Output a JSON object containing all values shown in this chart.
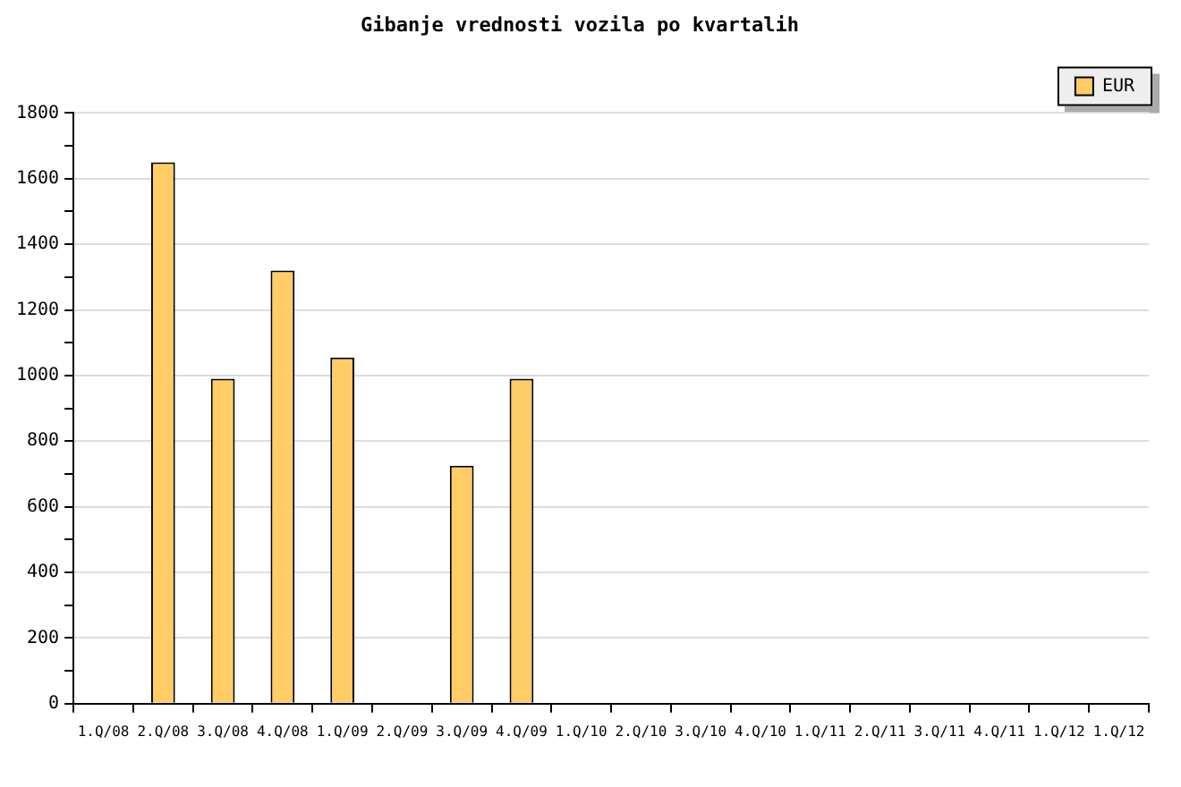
{
  "chart_data": {
    "type": "bar",
    "title": "Gibanje vrednosti vozila po kvartalih",
    "categories": [
      "1.Q/08",
      "2.Q/08",
      "3.Q/08",
      "4.Q/08",
      "1.Q/09",
      "2.Q/09",
      "3.Q/09",
      "4.Q/09",
      "1.Q/10",
      "2.Q/10",
      "3.Q/10",
      "4.Q/10",
      "1.Q/11",
      "2.Q/11",
      "3.Q/11",
      "4.Q/11",
      "1.Q/12",
      "1.Q/12"
    ],
    "series": [
      {
        "name": "EUR",
        "color": "#ffcc66",
        "values": [
          null,
          1650,
          990,
          1320,
          1055,
          null,
          725,
          990,
          null,
          null,
          null,
          null,
          null,
          null,
          null,
          null,
          null,
          null
        ]
      }
    ],
    "ylim": [
      0,
      1800
    ],
    "yticks": [
      0,
      {
        "value": 100,
        "label": null
      },
      200,
      {
        "value": 300,
        "label": null
      },
      400,
      {
        "value": 500,
        "label": null
      },
      600,
      {
        "value": 700,
        "label": null
      },
      800,
      {
        "value": 900,
        "label": null
      },
      1000,
      {
        "value": 1100,
        "label": null
      },
      1200,
      {
        "value": 1300,
        "label": null
      },
      1400,
      {
        "value": 1500,
        "label": null
      },
      1600,
      {
        "value": 1700,
        "label": null
      },
      1800
    ],
    "grid": "y",
    "legend": "top right"
  }
}
